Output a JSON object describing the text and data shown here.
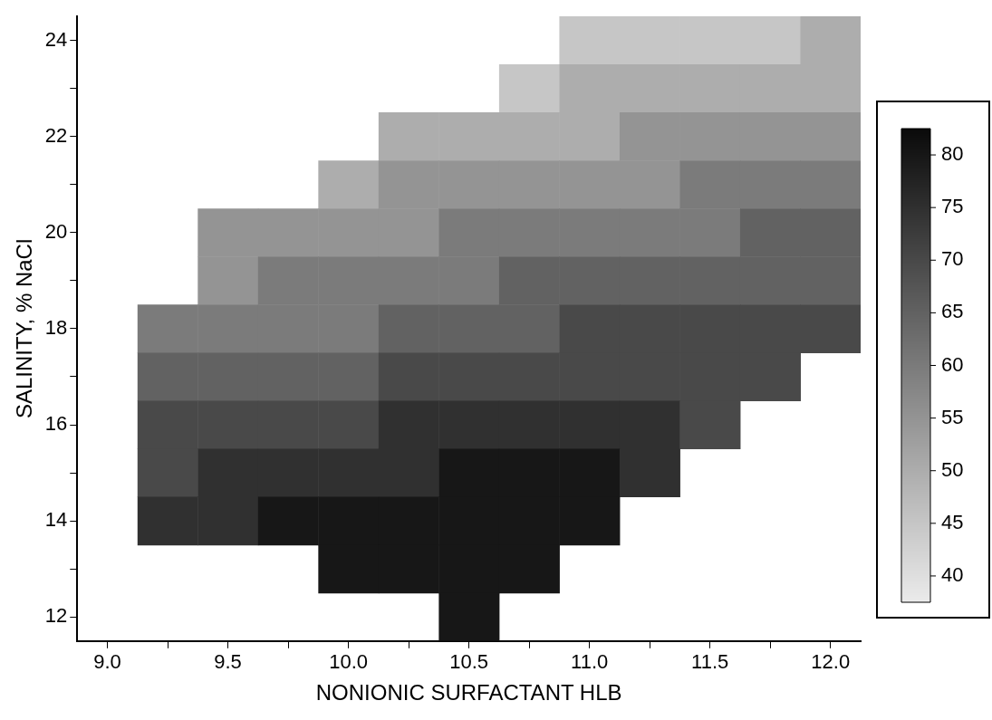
{
  "chart_data": {
    "type": "heatmap",
    "xlabel": "NONIONIC SURFACTANT HLB",
    "ylabel": "SALINITY, % NaCl",
    "categories": [
      "9.0",
      null,
      "9.5",
      null,
      "10.0",
      null,
      "10.5",
      null,
      "11.0",
      null,
      "11.5",
      null,
      "12.0"
    ],
    "y_categories": [
      "24",
      null,
      "22",
      null,
      "20",
      null,
      "18",
      null,
      "16",
      null,
      "14",
      null,
      "12"
    ],
    "cells": [
      [
        null,
        null,
        null,
        null,
        null,
        null,
        null,
        null,
        45,
        45,
        45,
        45,
        50
      ],
      [
        null,
        null,
        null,
        null,
        null,
        null,
        null,
        45,
        50,
        50,
        50,
        50,
        50
      ],
      [
        null,
        null,
        null,
        null,
        null,
        50,
        50,
        50,
        50,
        55,
        55,
        55,
        55
      ],
      [
        null,
        null,
        null,
        null,
        50,
        55,
        55,
        55,
        55,
        55,
        60,
        60,
        60
      ],
      [
        null,
        null,
        55,
        55,
        55,
        55,
        60,
        60,
        60,
        60,
        60,
        65,
        65
      ],
      [
        null,
        null,
        55,
        60,
        60,
        60,
        60,
        65,
        65,
        65,
        65,
        65,
        65
      ],
      [
        null,
        60,
        60,
        60,
        60,
        65,
        65,
        65,
        70,
        70,
        70,
        70,
        70
      ],
      [
        null,
        65,
        65,
        65,
        65,
        70,
        70,
        70,
        70,
        70,
        70,
        70,
        null
      ],
      [
        null,
        70,
        70,
        70,
        70,
        75,
        75,
        75,
        75,
        75,
        70,
        null,
        null
      ],
      [
        null,
        70,
        75,
        75,
        75,
        75,
        80,
        80,
        80,
        75,
        null,
        null,
        null
      ],
      [
        null,
        75,
        75,
        80,
        80,
        80,
        80,
        80,
        80,
        null,
        null,
        null,
        null
      ],
      [
        null,
        null,
        null,
        null,
        80,
        80,
        80,
        80,
        null,
        null,
        null,
        null,
        null
      ],
      [
        null,
        null,
        null,
        null,
        null,
        null,
        80,
        null,
        null,
        null,
        null,
        null,
        null
      ]
    ],
    "clim": [
      37.5,
      82.5
    ],
    "cticks": [
      40,
      45,
      50,
      55,
      60,
      65,
      70,
      75,
      80
    ],
    "grid": false,
    "legend": false
  }
}
